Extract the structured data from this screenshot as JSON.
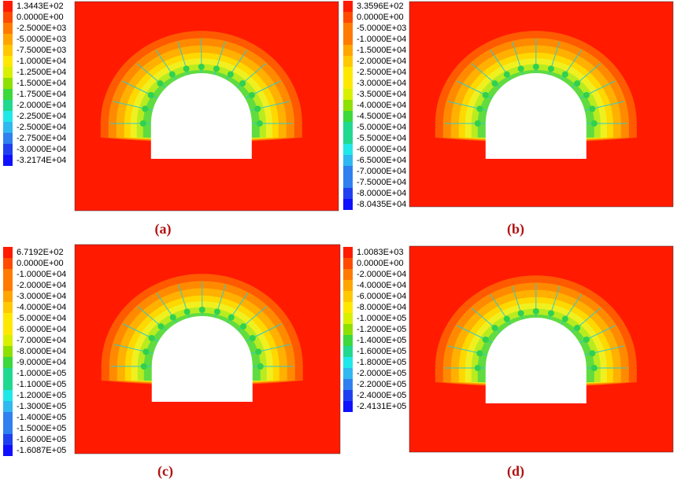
{
  "panels": [
    {
      "label": "(a)",
      "legend": [
        "1.3443E+02",
        "0.0000E+00",
        "-2.5000E+03",
        "-5.0000E+03",
        "-7.5000E+03",
        "-1.0000E+04",
        "-1.2500E+04",
        "-1.5000E+04",
        "-1.7500E+04",
        "-2.0000E+04",
        "-2.2500E+04",
        "-2.5000E+04",
        "-2.7500E+04",
        "-3.0000E+04",
        "-3.2174E+04"
      ]
    },
    {
      "label": "(b)",
      "legend": [
        "3.3596E+02",
        "0.0000E+00",
        "-5.0000E+03",
        "-1.0000E+04",
        "-1.5000E+04",
        "-2.0000E+04",
        "-2.5000E+04",
        "-3.0000E+04",
        "-3.5000E+04",
        "-4.0000E+04",
        "-4.5000E+04",
        "-5.0000E+04",
        "-5.5000E+04",
        "-6.0000E+04",
        "-6.5000E+04",
        "-7.0000E+04",
        "-7.5000E+04",
        "-8.0000E+04",
        "-8.0435E+04"
      ]
    },
    {
      "label": "(c)",
      "legend": [
        "6.7192E+02",
        "0.0000E+00",
        "-1.0000E+04",
        "-2.0000E+04",
        "-3.0000E+04",
        "-4.0000E+04",
        "-5.0000E+04",
        "-6.0000E+04",
        "-7.0000E+04",
        "-8.0000E+04",
        "-9.0000E+04",
        "-1.0000E+05",
        "-1.1000E+05",
        "-1.2000E+05",
        "-1.3000E+05",
        "-1.4000E+05",
        "-1.5000E+05",
        "-1.6000E+05",
        "-1.6087E+05"
      ]
    },
    {
      "label": "(d)",
      "legend": [
        "1.0083E+03",
        "0.0000E+00",
        "-2.0000E+04",
        "-4.0000E+04",
        "-6.0000E+04",
        "-8.0000E+04",
        "-1.0000E+05",
        "-1.2000E+05",
        "-1.4000E+05",
        "-1.6000E+05",
        "-1.8000E+05",
        "-2.0000E+05",
        "-2.2000E+05",
        "-2.4000E+05",
        "-2.4131E+05"
      ]
    }
  ]
}
